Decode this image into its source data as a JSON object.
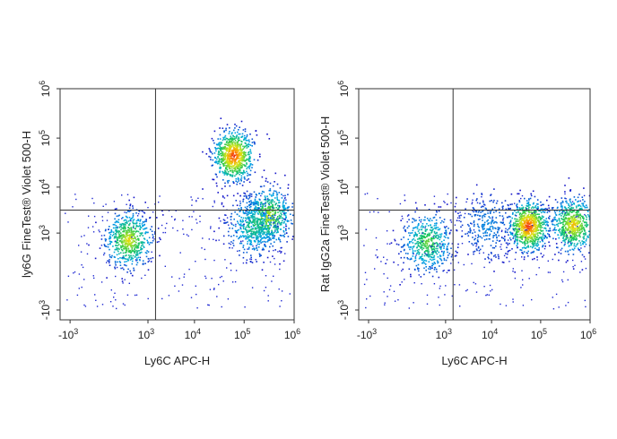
{
  "chart_data": [
    {
      "type": "scatter",
      "subtype": "flow-cytometry-density-plot",
      "xlabel": "Ly6C APC-H",
      "ylabel": "ly6G FineTest® Violet 500-H",
      "x_scale": "biexponential",
      "y_scale": "biexponential",
      "xticks": [
        {
          "value": -1000,
          "base": "-10",
          "exp": "3"
        },
        {
          "value": 1000,
          "base": "10",
          "exp": "3"
        },
        {
          "value": 10000,
          "base": "10",
          "exp": "4"
        },
        {
          "value": 100000,
          "base": "10",
          "exp": "5"
        },
        {
          "value": 1000000,
          "base": "10",
          "exp": "6"
        }
      ],
      "yticks": [
        {
          "value": -1000,
          "base": "-10",
          "exp": "3"
        },
        {
          "value": 1000,
          "base": "10",
          "exp": "3"
        },
        {
          "value": 10000,
          "base": "10",
          "exp": "4"
        },
        {
          "value": 100000,
          "base": "10",
          "exp": "5"
        },
        {
          "value": 1000000,
          "base": "10",
          "exp": "6"
        }
      ],
      "gate": {
        "x": 1500,
        "y": 3300
      },
      "populations": [
        {
          "x": 280,
          "y": 700,
          "intensity": 0.75
        },
        {
          "x": 60000,
          "y": 45000,
          "intensity": 1.0
        },
        {
          "x": 300000,
          "y": 2500,
          "intensity": 0.7
        },
        {
          "x": 150000,
          "y": 1500,
          "intensity": 0.5
        }
      ],
      "grid": false
    },
    {
      "type": "scatter",
      "subtype": "flow-cytometry-density-plot",
      "xlabel": "Ly6C APC-H",
      "ylabel": "Rat IgG2a FineTest® Violet 500-H",
      "x_scale": "biexponential",
      "y_scale": "biexponential",
      "xticks": [
        {
          "value": -1000,
          "base": "-10",
          "exp": "3"
        },
        {
          "value": 1000,
          "base": "10",
          "exp": "3"
        },
        {
          "value": 10000,
          "base": "10",
          "exp": "4"
        },
        {
          "value": 100000,
          "base": "10",
          "exp": "5"
        },
        {
          "value": 1000000,
          "base": "10",
          "exp": "6"
        }
      ],
      "yticks": [
        {
          "value": -1000,
          "base": "-10",
          "exp": "3"
        },
        {
          "value": 1000,
          "base": "10",
          "exp": "3"
        },
        {
          "value": 10000,
          "base": "10",
          "exp": "4"
        },
        {
          "value": 100000,
          "base": "10",
          "exp": "5"
        },
        {
          "value": 1000000,
          "base": "10",
          "exp": "6"
        }
      ],
      "gate": {
        "x": 1500,
        "y": 3300
      },
      "populations": [
        {
          "x": 300,
          "y": 600,
          "intensity": 0.6
        },
        {
          "x": 55000,
          "y": 1500,
          "intensity": 1.0
        },
        {
          "x": 450000,
          "y": 1600,
          "intensity": 0.8
        },
        {
          "x": 8000,
          "y": 1500,
          "intensity": 0.25
        }
      ],
      "grid": false
    }
  ]
}
